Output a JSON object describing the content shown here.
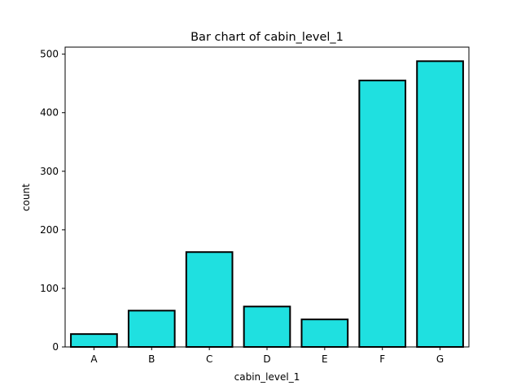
{
  "chart_data": {
    "type": "bar",
    "title": "Bar chart of cabin_level_1",
    "xlabel": "cabin_level_1",
    "ylabel": "count",
    "categories": [
      "A",
      "B",
      "C",
      "D",
      "E",
      "F",
      "G"
    ],
    "values": [
      22,
      62,
      162,
      69,
      47,
      455,
      488
    ],
    "ylim": [
      0,
      512
    ],
    "yticks": [
      0,
      100,
      200,
      300,
      400,
      500
    ],
    "grid": false,
    "legend": "none",
    "bar_color": "#1fe0e0",
    "bar_edge_color": "#000000"
  }
}
